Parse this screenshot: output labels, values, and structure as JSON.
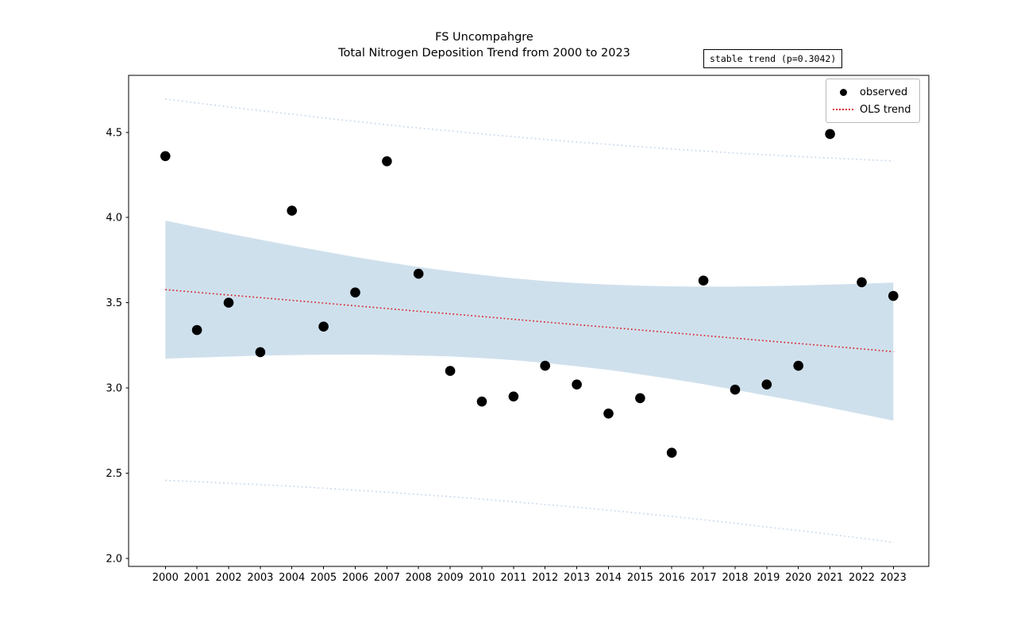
{
  "header": {
    "title_line1": "FS Uncompahgre",
    "title_line2": "Total Nitrogen Deposition Trend from 2000 to 2023",
    "annotation": "stable trend (p=0.3042)"
  },
  "legend": {
    "position": "upper right",
    "items": [
      {
        "label": "observed",
        "marker": "black-dot"
      },
      {
        "label": "OLS trend",
        "marker": "red-dotted-line"
      }
    ]
  },
  "colors": {
    "observed": "#000000",
    "trend": "#d62728",
    "ci_band": "#cfe0ed",
    "pi_line": "#b9cfe7",
    "axis": "#000000",
    "background": "#ffffff"
  },
  "chart_data": {
    "type": "scatter",
    "title": "FS Uncompahgre\nTotal Nitrogen Deposition Trend from 2000 to 2023",
    "xlabel": "",
    "ylabel": "",
    "grid": false,
    "legend_position": "upper right",
    "x": [
      2000,
      2001,
      2002,
      2003,
      2004,
      2005,
      2006,
      2007,
      2008,
      2009,
      2010,
      2011,
      2012,
      2013,
      2014,
      2015,
      2016,
      2017,
      2018,
      2019,
      2020,
      2021,
      2022,
      2023
    ],
    "observed": [
      4.36,
      3.34,
      3.5,
      3.21,
      4.04,
      3.36,
      3.56,
      4.33,
      3.67,
      3.1,
      2.92,
      2.95,
      3.13,
      3.02,
      2.85,
      2.94,
      2.62,
      3.63,
      2.99,
      3.02,
      3.13,
      4.49,
      3.62,
      3.54
    ],
    "ols_trend": [
      3.577,
      3.561,
      3.545,
      3.53,
      3.514,
      3.498,
      3.482,
      3.466,
      3.45,
      3.435,
      3.419,
      3.403,
      3.387,
      3.371,
      3.356,
      3.34,
      3.324,
      3.308,
      3.292,
      3.276,
      3.261,
      3.245,
      3.229,
      3.213
    ],
    "ci_upper": [
      3.982,
      3.944,
      3.906,
      3.87,
      3.835,
      3.801,
      3.768,
      3.738,
      3.71,
      3.685,
      3.663,
      3.643,
      3.627,
      3.615,
      3.606,
      3.6,
      3.596,
      3.594,
      3.595,
      3.597,
      3.601,
      3.606,
      3.612,
      3.618
    ],
    "ci_lower": [
      3.172,
      3.178,
      3.184,
      3.19,
      3.193,
      3.195,
      3.196,
      3.194,
      3.19,
      3.185,
      3.175,
      3.163,
      3.147,
      3.127,
      3.106,
      3.08,
      3.052,
      3.022,
      2.989,
      2.955,
      2.921,
      2.884,
      2.846,
      2.808
    ],
    "pi_upper": [
      4.696,
      4.672,
      4.649,
      4.627,
      4.606,
      4.584,
      4.564,
      4.544,
      4.525,
      4.508,
      4.49,
      4.474,
      4.458,
      4.442,
      4.429,
      4.415,
      4.402,
      4.39,
      4.378,
      4.368,
      4.358,
      4.349,
      4.34,
      4.332
    ],
    "pi_lower": [
      2.458,
      2.45,
      2.441,
      2.433,
      2.423,
      2.412,
      2.4,
      2.388,
      2.375,
      2.362,
      2.348,
      2.332,
      2.316,
      2.3,
      2.283,
      2.265,
      2.246,
      2.226,
      2.206,
      2.184,
      2.164,
      2.141,
      2.118,
      2.094
    ],
    "xticks": [
      2000,
      2001,
      2002,
      2003,
      2004,
      2005,
      2006,
      2007,
      2008,
      2009,
      2010,
      2011,
      2012,
      2013,
      2014,
      2015,
      2016,
      2017,
      2018,
      2019,
      2020,
      2021,
      2022,
      2023
    ],
    "yticks": [
      2.0,
      2.5,
      3.0,
      3.5,
      4.0,
      4.5
    ],
    "xlim": [
      1998.84,
      2024.12
    ],
    "ylim": [
      1.953,
      4.834
    ]
  }
}
